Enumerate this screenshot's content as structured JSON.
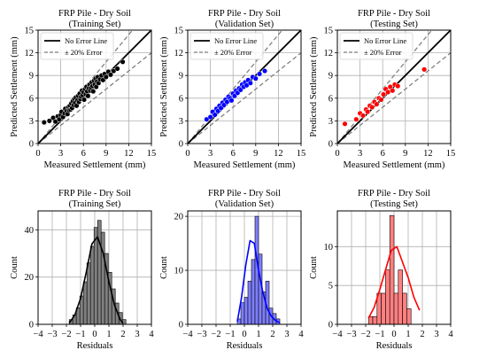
{
  "colors": {
    "training": "#000000",
    "training_hist": "#808080",
    "validation": "#0000ff",
    "validation_hist": "#7f7fff",
    "testing": "#ff0000",
    "testing_hist": "#ff8080",
    "no_error_line": "#000000",
    "error_line": "#808080"
  },
  "chart_data": [
    {
      "type": "scatter",
      "title": "FRP Pile - Dry Soil\n(Training Set)",
      "xlabel": "Measured Settlement (mm)",
      "ylabel": "Predicted Settlement (mm)",
      "xlim": [
        0,
        15
      ],
      "ylim": [
        0,
        15
      ],
      "xticks": [
        "0",
        "3",
        "6",
        "9",
        "12",
        "15"
      ],
      "yticks": [
        "0",
        "3",
        "6",
        "9",
        "12",
        "15"
      ],
      "grid": true,
      "legend": {
        "placement": "top-left",
        "entries": [
          "No Error Line",
          "± 20% Error"
        ]
      },
      "color": "#000000",
      "x": [
        0.8,
        1.5,
        2.0,
        2.3,
        2.6,
        2.8,
        3.0,
        3.1,
        3.3,
        3.5,
        3.6,
        3.8,
        3.9,
        4.0,
        4.1,
        4.2,
        4.3,
        4.4,
        4.5,
        4.6,
        4.7,
        4.8,
        4.9,
        5.0,
        5.1,
        5.2,
        5.3,
        5.4,
        5.5,
        5.6,
        5.7,
        5.8,
        5.9,
        6.0,
        6.1,
        6.2,
        6.3,
        6.4,
        6.5,
        6.6,
        6.7,
        6.8,
        6.9,
        7.0,
        7.1,
        7.2,
        7.3,
        7.4,
        7.5,
        7.6,
        7.7,
        7.8,
        7.9,
        8.0,
        8.2,
        8.4,
        8.6,
        8.8,
        9.0,
        9.3,
        9.6,
        10.0,
        10.5,
        11.2
      ],
      "y": [
        2.8,
        3.0,
        3.4,
        2.9,
        3.6,
        3.2,
        3.8,
        4.2,
        3.5,
        4.0,
        4.6,
        4.3,
        3.9,
        4.8,
        4.4,
        5.0,
        4.5,
        5.3,
        4.7,
        5.6,
        5.1,
        5.9,
        5.4,
        6.1,
        5.0,
        5.7,
        6.3,
        5.5,
        6.6,
        5.9,
        6.2,
        7.0,
        6.4,
        6.8,
        5.8,
        7.2,
        6.5,
        7.5,
        6.9,
        6.3,
        7.3,
        7.8,
        7.0,
        7.4,
        8.1,
        7.6,
        6.9,
        8.3,
        7.8,
        8.6,
        7.5,
        8.2,
        8.8,
        8.0,
        8.5,
        9.0,
        8.4,
        9.2,
        8.8,
        9.5,
        9.1,
        9.6,
        9.9,
        10.8
      ]
    },
    {
      "type": "scatter",
      "title": "FRP Pile - Dry Soil\n(Validation Set)",
      "xlabel": "Measured Settlement (mm)",
      "ylabel": "Predicted Settlement (mm)",
      "xlim": [
        0,
        15
      ],
      "ylim": [
        0,
        15
      ],
      "xticks": [
        "0",
        "3",
        "6",
        "9",
        "12",
        "15"
      ],
      "yticks": [
        "0",
        "3",
        "6",
        "9",
        "12",
        "15"
      ],
      "grid": true,
      "legend": {
        "placement": "top-left",
        "entries": [
          "No Error Line",
          "± 20% Error"
        ]
      },
      "color": "#0000ff",
      "x": [
        2.5,
        3.0,
        3.3,
        3.6,
        3.8,
        4.0,
        4.2,
        4.4,
        4.6,
        4.8,
        5.0,
        5.2,
        5.4,
        5.6,
        5.8,
        6.0,
        6.2,
        6.4,
        6.6,
        6.8,
        7.0,
        7.2,
        7.4,
        7.6,
        7.8,
        8.0,
        8.3,
        8.6,
        9.0,
        9.5,
        10.2
      ],
      "y": [
        3.2,
        3.5,
        4.2,
        3.8,
        4.6,
        4.3,
        5.0,
        4.7,
        5.4,
        5.1,
        5.8,
        5.5,
        6.2,
        6.0,
        5.7,
        6.6,
        6.3,
        7.0,
        6.7,
        7.3,
        7.1,
        7.8,
        7.5,
        8.1,
        7.7,
        8.4,
        8.0,
        8.8,
        8.6,
        9.2,
        9.6
      ]
    },
    {
      "type": "scatter",
      "title": "FRP Pile - Dry Soil\n(Testing Set)",
      "xlabel": "Measured Settlement (mm)",
      "ylabel": "Predicted Settlement (mm)",
      "xlim": [
        0,
        15
      ],
      "ylim": [
        0,
        15
      ],
      "xticks": [
        "0",
        "3",
        "6",
        "9",
        "12",
        "15"
      ],
      "yticks": [
        "0",
        "3",
        "6",
        "9",
        "12",
        "15"
      ],
      "grid": true,
      "legend": {
        "placement": "top-left",
        "entries": [
          "No Error Line",
          "± 20% Error"
        ]
      },
      "color": "#ff0000",
      "x": [
        1.0,
        2.5,
        3.0,
        3.4,
        3.8,
        4.0,
        4.3,
        4.6,
        4.9,
        5.2,
        5.5,
        5.8,
        6.1,
        6.4,
        6.7,
        7.0,
        7.3,
        7.6,
        8.0,
        11.5
      ],
      "y": [
        2.6,
        3.2,
        4.0,
        3.7,
        4.5,
        4.2,
        5.0,
        4.8,
        5.5,
        5.2,
        6.0,
        5.8,
        6.5,
        7.2,
        6.8,
        7.5,
        7.0,
        7.8,
        7.6,
        9.8
      ]
    },
    {
      "type": "bar",
      "subtype": "histogram",
      "title": "FRP Pile - Dry Soil\n(Training Set)",
      "xlabel": "Residuals",
      "ylabel": "Count",
      "xlim": [
        -4,
        4
      ],
      "ylim": [
        0,
        48
      ],
      "xticks": [
        "−4",
        "−3",
        "−2",
        "−1",
        "0",
        "1",
        "2",
        "3",
        "4"
      ],
      "yticks": [
        "0",
        "20",
        "40"
      ],
      "ytick_values": [
        0,
        20,
        40
      ],
      "grid": true,
      "color": "#808080",
      "bin_start": -1.8,
      "bin_width": 0.25,
      "values": [
        2,
        4,
        7,
        12,
        18,
        26,
        33,
        41,
        44,
        39,
        30,
        22,
        15,
        9,
        5,
        2
      ],
      "kde": {
        "x": [
          -1.8,
          -1.4,
          -1.0,
          -0.6,
          -0.2,
          0.2,
          0.6,
          1.0,
          1.4,
          1.8,
          2.0
        ],
        "y": [
          0.5,
          4,
          11,
          22,
          34,
          37,
          30,
          18,
          8,
          2,
          0.5
        ]
      }
    },
    {
      "type": "bar",
      "subtype": "histogram",
      "title": "FRP Pile - Dry Soil\n(Validation Set)",
      "xlabel": "Residuals",
      "ylabel": "Count",
      "xlim": [
        -4,
        4
      ],
      "ylim": [
        0,
        21
      ],
      "xticks": [
        "−4",
        "−3",
        "−2",
        "−1",
        "0",
        "1",
        "2",
        "3",
        "4"
      ],
      "yticks": [
        "0",
        "10",
        "20"
      ],
      "ytick_values": [
        0,
        10,
        20
      ],
      "grid": true,
      "color": "#7f7fff",
      "bin_start": -0.5,
      "bin_width": 0.25,
      "values": [
        1,
        4,
        5,
        8,
        12,
        20,
        13,
        6,
        8,
        3,
        2,
        1
      ],
      "kde": {
        "x": [
          -0.5,
          -0.2,
          0.1,
          0.4,
          0.7,
          1.0,
          1.3,
          1.6,
          1.9,
          2.2,
          2.5
        ],
        "y": [
          0.5,
          5,
          11,
          15.5,
          15,
          10,
          6,
          3,
          1.5,
          0.7,
          0.3
        ]
      }
    },
    {
      "type": "bar",
      "subtype": "histogram",
      "title": "FRP Pile - Dry Soil\n(Testing Set)",
      "xlabel": "Residuals",
      "ylabel": "Count",
      "xlim": [
        -4,
        4
      ],
      "ylim": [
        0,
        14.6
      ],
      "xticks": [
        "−4",
        "−3",
        "−2",
        "−1",
        "0",
        "1",
        "2",
        "3",
        "4"
      ],
      "yticks": [
        "0",
        "5",
        "10"
      ],
      "ytick_values": [
        0,
        5,
        10
      ],
      "grid": true,
      "color": "#ff8080",
      "bin_start": -1.8,
      "bin_width": 0.3,
      "values": [
        1,
        1,
        4,
        4,
        7,
        14,
        4,
        7,
        4,
        2
      ],
      "kde": {
        "x": [
          -1.8,
          -1.4,
          -1.0,
          -0.6,
          -0.2,
          0.2,
          0.6,
          1.0,
          1.4,
          1.8
        ],
        "y": [
          0.8,
          2.2,
          4.5,
          7,
          9.5,
          10,
          8,
          6,
          3.5,
          1.8
        ]
      }
    }
  ]
}
